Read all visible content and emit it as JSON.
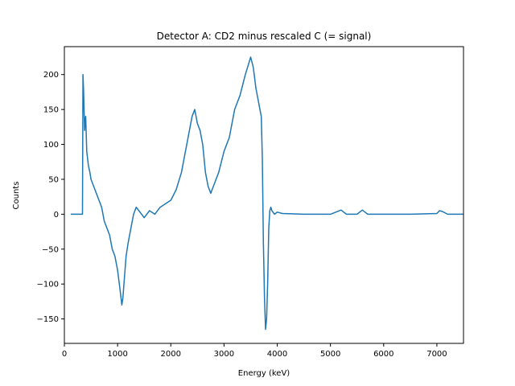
{
  "chart_data": {
    "type": "line",
    "title": "Detector A: CD2 minus rescaled C (= signal)",
    "xlabel": "Energy (keV)",
    "ylabel": "Counts",
    "xlim": [
      0,
      7500
    ],
    "ylim": [
      -185,
      240
    ],
    "xticks": [
      0,
      1000,
      2000,
      3000,
      4000,
      5000,
      6000,
      7000
    ],
    "xtick_labels": [
      "0",
      "1000",
      "2000",
      "3000",
      "4000",
      "5000",
      "6000",
      "7000"
    ],
    "yticks": [
      -150,
      -100,
      -50,
      0,
      50,
      100,
      150,
      200
    ],
    "ytick_labels": [
      "−150",
      "−100",
      "−50",
      "0",
      "50",
      "100",
      "150",
      "200"
    ],
    "grid": false,
    "color": "#1f77b4",
    "series": [
      {
        "name": "signal",
        "x": [
          120,
          200,
          300,
          340,
          350,
          360,
          370,
          380,
          400,
          420,
          450,
          480,
          500,
          550,
          600,
          650,
          700,
          750,
          800,
          850,
          900,
          950,
          1000,
          1050,
          1080,
          1100,
          1130,
          1160,
          1200,
          1250,
          1300,
          1350,
          1400,
          1500,
          1600,
          1700,
          1800,
          1900,
          2000,
          2100,
          2200,
          2300,
          2400,
          2450,
          2500,
          2550,
          2600,
          2650,
          2700,
          2750,
          2800,
          2900,
          3000,
          3100,
          3200,
          3300,
          3400,
          3500,
          3550,
          3600,
          3650,
          3700,
          3720,
          3740,
          3760,
          3780,
          3800,
          3820,
          3840,
          3860,
          3880,
          3900,
          3950,
          4000,
          4100,
          4500,
          5000,
          5200,
          5250,
          5300,
          5500,
          5600,
          5650,
          5700,
          6000,
          6500,
          7000,
          7050,
          7100,
          7150,
          7200,
          7500
        ],
        "y": [
          0,
          0,
          0,
          0,
          200,
          180,
          150,
          120,
          140,
          90,
          70,
          60,
          50,
          40,
          30,
          20,
          10,
          -10,
          -20,
          -30,
          -50,
          -60,
          -80,
          -110,
          -130,
          -120,
          -90,
          -60,
          -40,
          -20,
          0,
          10,
          5,
          -5,
          5,
          0,
          10,
          15,
          20,
          35,
          60,
          100,
          140,
          150,
          130,
          120,
          100,
          60,
          40,
          30,
          40,
          60,
          90,
          110,
          150,
          170,
          200,
          225,
          210,
          180,
          160,
          140,
          80,
          -40,
          -120,
          -165,
          -150,
          -100,
          -20,
          5,
          10,
          5,
          0,
          3,
          1,
          0,
          0,
          6,
          3,
          0,
          0,
          6,
          3,
          0,
          0,
          0,
          1,
          5,
          4,
          2,
          0,
          0
        ]
      }
    ]
  }
}
